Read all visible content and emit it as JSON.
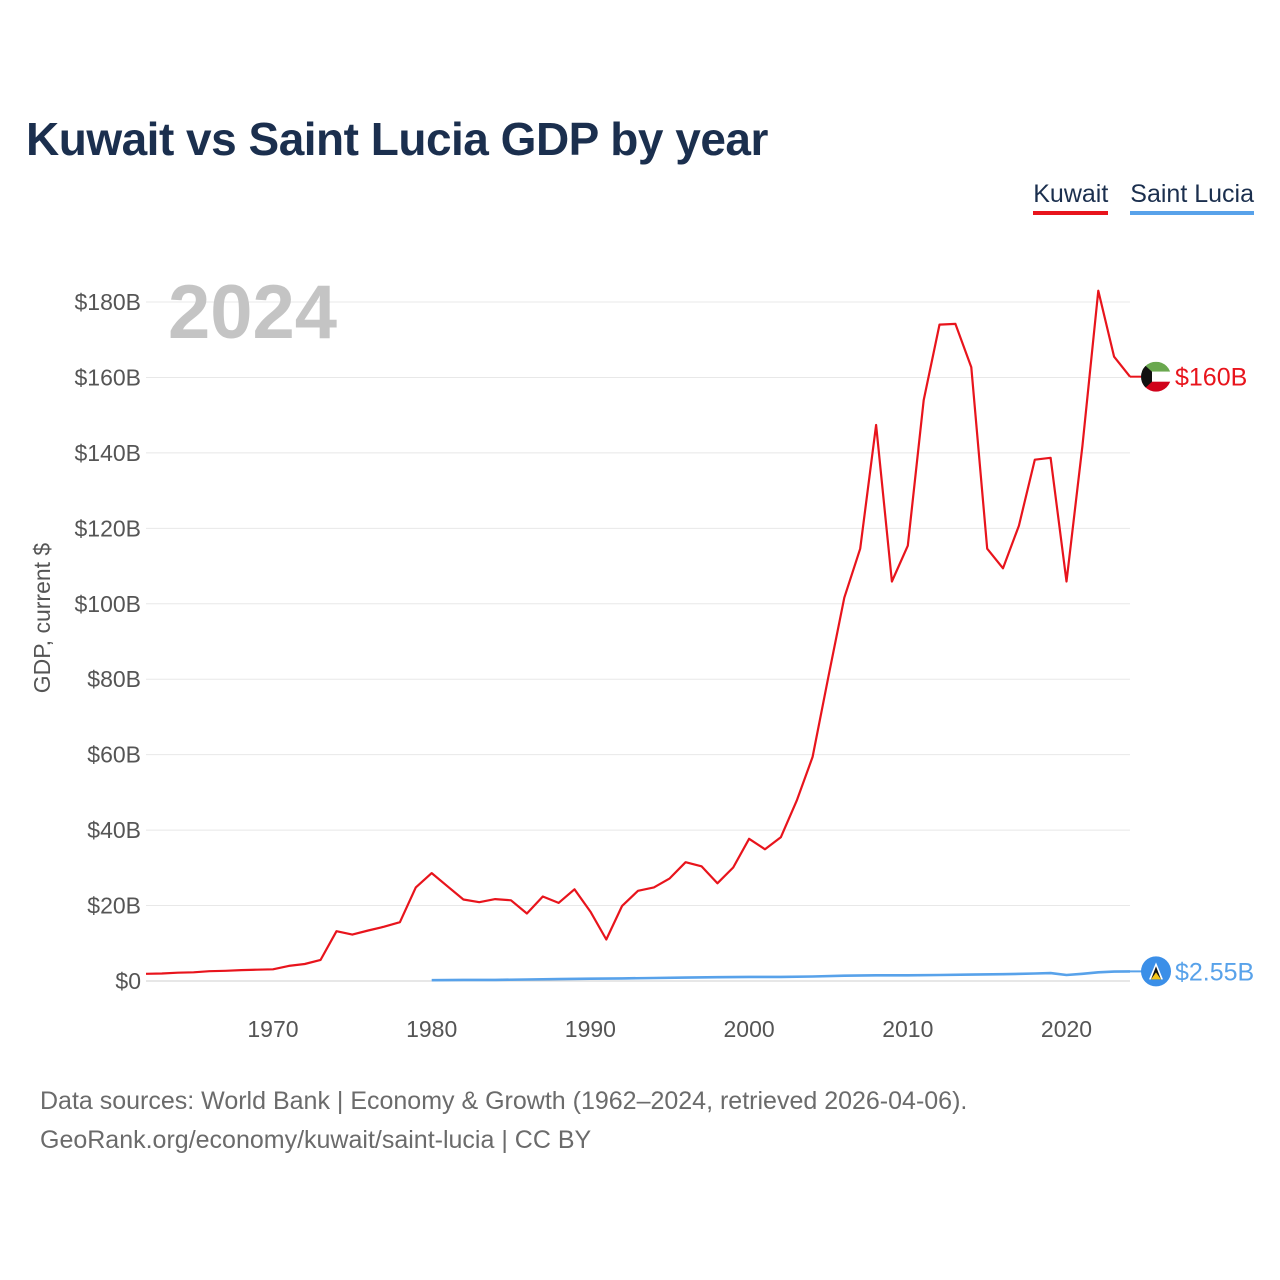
{
  "chart_data": {
    "type": "line",
    "title": "Kuwait vs Saint Lucia GDP by year",
    "ylabel": "GDP, current $",
    "xlabel": "",
    "xlim": [
      1962,
      2024
    ],
    "ylim": [
      0,
      180
    ],
    "unit": "USD billions",
    "current_year_label": "2024",
    "y_ticks": [
      {
        "value": 0,
        "label": "$0"
      },
      {
        "value": 20,
        "label": "$20B"
      },
      {
        "value": 40,
        "label": "$40B"
      },
      {
        "value": 60,
        "label": "$60B"
      },
      {
        "value": 80,
        "label": "$80B"
      },
      {
        "value": 100,
        "label": "$100B"
      },
      {
        "value": 120,
        "label": "$120B"
      },
      {
        "value": 140,
        "label": "$140B"
      },
      {
        "value": 160,
        "label": "$160B"
      },
      {
        "value": 180,
        "label": "$180B"
      }
    ],
    "x_ticks": [
      {
        "value": 1970,
        "label": "1970"
      },
      {
        "value": 1980,
        "label": "1980"
      },
      {
        "value": 1990,
        "label": "1990"
      },
      {
        "value": 2000,
        "label": "2000"
      },
      {
        "value": 2010,
        "label": "2010"
      },
      {
        "value": 2020,
        "label": "2020"
      }
    ],
    "series": [
      {
        "name": "Kuwait",
        "color": "#e8141c",
        "end_label": "$160B",
        "x": [
          1962,
          1963,
          1964,
          1965,
          1966,
          1967,
          1968,
          1969,
          1970,
          1971,
          1972,
          1973,
          1974,
          1975,
          1976,
          1977,
          1978,
          1979,
          1980,
          1981,
          1982,
          1983,
          1984,
          1985,
          1986,
          1987,
          1988,
          1989,
          1990,
          1991,
          1992,
          1993,
          1994,
          1995,
          1996,
          1997,
          1998,
          1999,
          2000,
          2001,
          2002,
          2003,
          2004,
          2005,
          2006,
          2007,
          2008,
          2009,
          2010,
          2011,
          2012,
          2013,
          2014,
          2015,
          2016,
          2017,
          2018,
          2019,
          2020,
          2021,
          2022,
          2023,
          2024
        ],
        "values": [
          1.9,
          2.0,
          2.2,
          2.3,
          2.6,
          2.7,
          2.9,
          3.0,
          3.1,
          4.0,
          4.5,
          5.6,
          13.2,
          12.3,
          13.4,
          14.4,
          15.6,
          24.8,
          28.6,
          25.1,
          21.6,
          20.9,
          21.7,
          21.4,
          17.9,
          22.4,
          20.7,
          24.3,
          18.4,
          11.0,
          19.9,
          23.9,
          24.8,
          27.2,
          31.5,
          30.4,
          25.9,
          30.1,
          37.7,
          34.9,
          38.1,
          47.8,
          59.4,
          80.8,
          101.6,
          114.6,
          147.4,
          105.9,
          115.4,
          154.0,
          174.0,
          174.2,
          162.7,
          114.6,
          109.4,
          120.7,
          138.2,
          138.7,
          105.9,
          141.8,
          183.0,
          165.5,
          160.2
        ]
      },
      {
        "name": "Saint Lucia",
        "color": "#58a2ea",
        "end_label": "$2.55B",
        "x": [
          1980,
          1982,
          1984,
          1986,
          1988,
          1990,
          1992,
          1994,
          1996,
          1998,
          2000,
          2002,
          2004,
          2006,
          2008,
          2010,
          2012,
          2014,
          2016,
          2018,
          2019,
          2020,
          2021,
          2022,
          2023,
          2024
        ],
        "values": [
          0.2,
          0.3,
          0.3,
          0.4,
          0.5,
          0.6,
          0.7,
          0.8,
          0.9,
          1.0,
          1.1,
          1.1,
          1.2,
          1.4,
          1.5,
          1.5,
          1.6,
          1.7,
          1.8,
          2.0,
          2.1,
          1.6,
          1.9,
          2.3,
          2.5,
          2.55
        ]
      }
    ]
  },
  "legend": {
    "kuwait": {
      "label": "Kuwait",
      "color": "#e8141c"
    },
    "saint_lucia": {
      "label": "Saint Lucia",
      "color": "#58a2ea"
    }
  },
  "footer": {
    "line1": "Data sources: World Bank | Economy & Growth (1962–2024, retrieved 2026-04-06).",
    "line2": "GeoRank.org/economy/kuwait/saint-lucia | CC BY"
  },
  "icons": {
    "kuwait_flag": "kuwait-flag-icon",
    "saint_lucia_flag": "saint-lucia-flag-icon"
  }
}
